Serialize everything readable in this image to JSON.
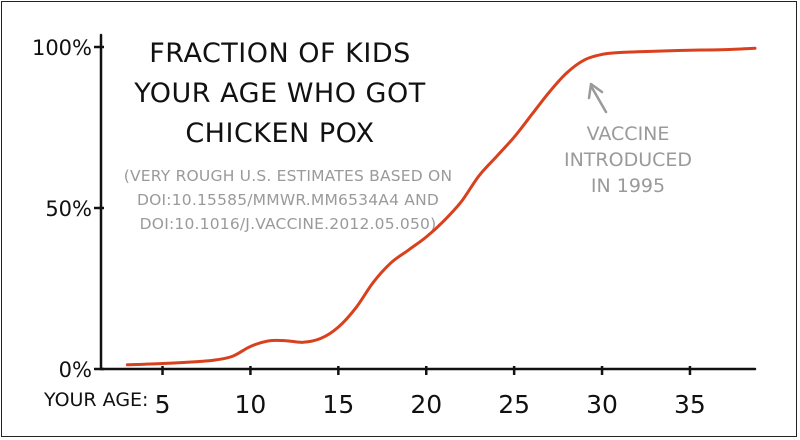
{
  "chart_data": {
    "type": "line",
    "title_lines": [
      "Fraction of kids",
      "your age who got",
      "chicken pox"
    ],
    "subtitle_lines": [
      "(Very rough U.S. estimates based on",
      "DOI:10.15585/mmwr.mm6534a4 and",
      "DOI:10.1016/j.vaccine.2012.05.050)"
    ],
    "xlabel": "Your age:",
    "ylabel": "",
    "xlim": [
      1.5,
      38.7
    ],
    "ylim": [
      0,
      100
    ],
    "xticks": [
      5,
      10,
      15,
      20,
      25,
      30,
      35
    ],
    "yticks": [
      0,
      50,
      100
    ],
    "ytick_labels": [
      "0%",
      "50%",
      "100%"
    ],
    "line_color": "#d9401e",
    "annotation": {
      "lines": [
        "Vaccine",
        "introduced",
        "in 1995"
      ],
      "points_to_age": 29
    },
    "series": [
      {
        "x": [
          3,
          5,
          7,
          8,
          9,
          10,
          11,
          12,
          13,
          14,
          15,
          16,
          17,
          18,
          19,
          20,
          21,
          22,
          23,
          24,
          25,
          26,
          27,
          28,
          29,
          30,
          31,
          32,
          33,
          35,
          37,
          38.7
        ],
        "y": [
          1.3,
          1.7,
          2.3,
          2.8,
          4,
          7,
          8.7,
          8.8,
          8.3,
          9.5,
          13,
          19,
          27,
          33,
          37,
          41,
          46,
          52,
          60,
          66,
          72,
          79,
          86,
          92,
          96,
          97.7,
          98.3,
          98.5,
          98.7,
          99,
          99.2,
          99.6
        ]
      }
    ]
  }
}
